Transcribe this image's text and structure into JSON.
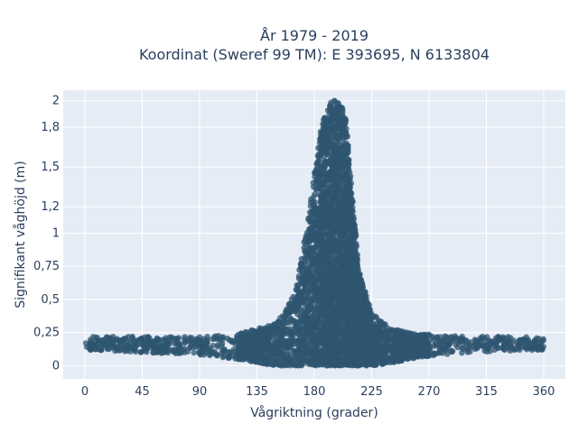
{
  "chart_data": {
    "type": "scatter",
    "title": "År 1979 - 2019",
    "subtitle": "Koordinat (Sweref 99 TM): E 393695, N 6133804",
    "xlabel": "Vågriktning (grader)",
    "ylabel": "Signifikant våghöjd (m)",
    "xlim": [
      -17,
      377
    ],
    "ylim": [
      -0.1,
      2.08
    ],
    "x_ticks": [
      0,
      45,
      90,
      135,
      180,
      225,
      270,
      315,
      360
    ],
    "y_ticks": [
      0,
      0.25,
      0.5,
      0.75,
      1,
      1.2,
      1.5,
      1.8,
      2
    ],
    "y_tick_labels": [
      "0",
      "0,25",
      "0,5",
      "0,75",
      "1",
      "1,2",
      "1,5",
      "1,8",
      "2"
    ],
    "grid": true,
    "marker_color": "#2f5570",
    "background": "#e5ecf6",
    "envelope": {
      "x": [
        0,
        20,
        45,
        90,
        120,
        150,
        165,
        175,
        185,
        190,
        195,
        200,
        205,
        210,
        215,
        225,
        240,
        260,
        300,
        330,
        360
      ],
      "upper": [
        0.22,
        0.22,
        0.22,
        0.22,
        0.24,
        0.32,
        0.55,
        1.1,
        1.8,
        1.95,
        2.02,
        2.01,
        1.85,
        1.3,
        0.72,
        0.4,
        0.28,
        0.24,
        0.22,
        0.22,
        0.22
      ],
      "lower": [
        0.12,
        0.11,
        0.1,
        0.08,
        0.05,
        0.0,
        0.0,
        0.0,
        0.0,
        0.0,
        0.0,
        0.0,
        0.0,
        0.0,
        0.0,
        0.0,
        0.02,
        0.06,
        0.1,
        0.11,
        0.12
      ]
    }
  }
}
